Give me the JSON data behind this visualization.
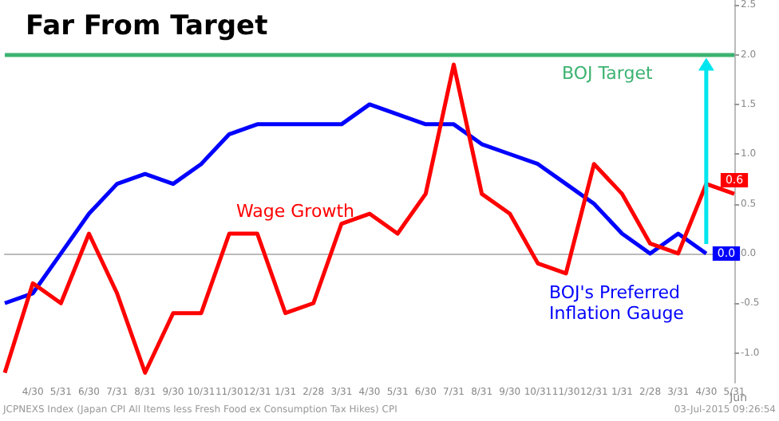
{
  "chart_data": {
    "type": "line",
    "title": "Far From Target",
    "categories": [
      null,
      "4/30",
      "5/31",
      "6/30",
      "7/31",
      "8/31",
      "9/30",
      "10/31",
      "11/30",
      "12/31",
      "1/31",
      "2/28",
      "3/31",
      "4/30",
      "5/31",
      "6/30",
      "7/31",
      "8/31",
      "9/30",
      "10/31",
      "11/30",
      "12/31",
      "1/31",
      "2/28",
      "3/31",
      "4/30",
      "5/31"
    ],
    "series": [
      {
        "name": "BOJ's Preferred\nInflation Gauge",
        "color": "#0000ff",
        "values": [
          -0.5,
          -0.4,
          0.0,
          0.4,
          0.7,
          0.8,
          0.7,
          0.9,
          1.2,
          1.3,
          1.3,
          1.3,
          1.3,
          1.5,
          1.4,
          1.3,
          1.3,
          1.1,
          1.0,
          0.9,
          0.7,
          0.5,
          0.2,
          0.0,
          0.2,
          0.0,
          null
        ],
        "value_labels": [
          null,
          null,
          null,
          null,
          null,
          null,
          null,
          null,
          null,
          null,
          null,
          null,
          null,
          null,
          null,
          null,
          null,
          null,
          null,
          null,
          null,
          null,
          null,
          null,
          null,
          "0.0",
          null
        ]
      },
      {
        "name": "Wage Growth",
        "color": "#ff0000",
        "values": [
          -1.2,
          -0.3,
          -0.5,
          0.2,
          -0.4,
          -1.2,
          -0.6,
          -0.6,
          0.2,
          0.2,
          -0.6,
          -0.5,
          0.3,
          0.4,
          0.2,
          0.6,
          1.9,
          0.6,
          0.4,
          -0.1,
          -0.2,
          0.9,
          0.6,
          0.1,
          0.0,
          0.7,
          0.6
        ],
        "value_labels": [
          null,
          null,
          null,
          null,
          null,
          null,
          null,
          null,
          null,
          null,
          null,
          null,
          null,
          null,
          null,
          null,
          null,
          null,
          null,
          null,
          null,
          null,
          null,
          null,
          null,
          null,
          "0.6"
        ]
      }
    ],
    "ylim": [
      -1.3,
      2.55
    ],
    "yticks": [
      {
        "value": -1,
        "label": "-1.0"
      },
      {
        "value": -0.5,
        "label": "-0.5"
      },
      {
        "value": 0,
        "label": "0.0"
      },
      {
        "value": 0.5,
        "label": "0.5"
      },
      {
        "value": 1,
        "label": "1.0"
      },
      {
        "value": 1.5,
        "label": "1.5"
      },
      {
        "value": 2,
        "label": "2.0"
      },
      {
        "value": 2.5,
        "label": "2.5"
      }
    ],
    "ref_lines": [
      {
        "axis": "y",
        "value": 2,
        "label": "BOJ Target",
        "color": "#3cb371"
      }
    ],
    "annotations": [
      "Jun",
      "JCPNEXS Index (Japan CPI All Items less Fresh Food ex Consumption Tax Hikes) CPI",
      "03-Jul-2015 09:26:54"
    ],
    "grid": false,
    "marker": "none",
    "line_style": "solid"
  }
}
